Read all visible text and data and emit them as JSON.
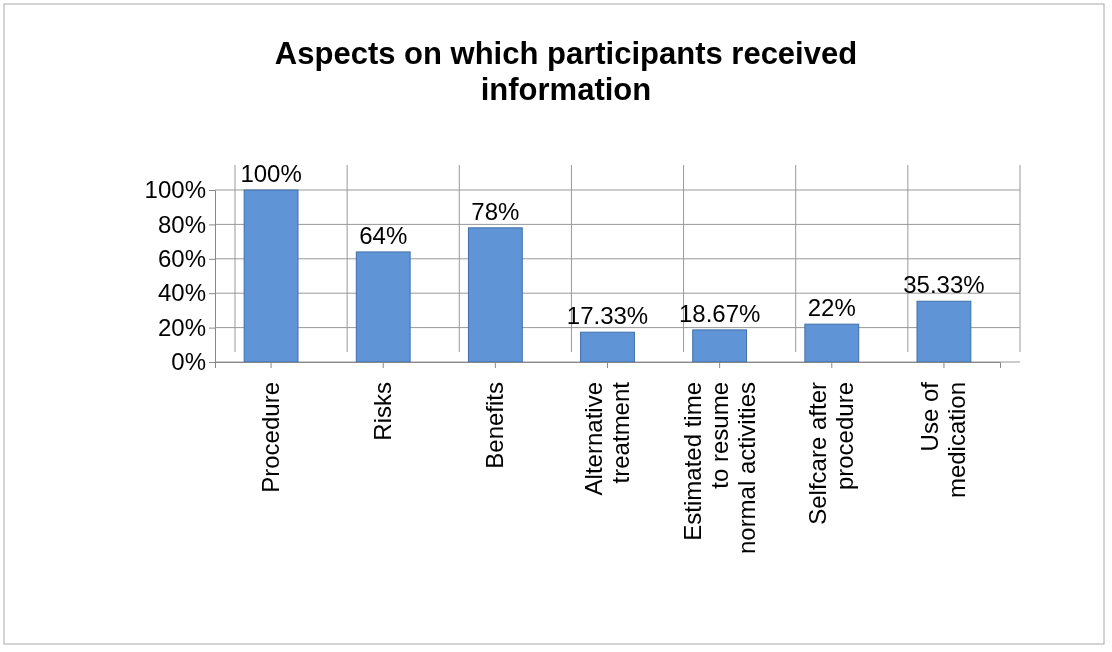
{
  "chart_data": {
    "type": "bar",
    "title": "Aspects on which participants received information",
    "categories": [
      "Procedure",
      "Risks",
      "Benefits",
      "Alternative treatment",
      "Estimated time to resume normal activities",
      "Selfcare after procedure",
      "Use of medication"
    ],
    "values": [
      100,
      64,
      78,
      17.33,
      18.67,
      22,
      35.33
    ],
    "value_labels": [
      "100%",
      "64%",
      "78%",
      "17.33%",
      "18.67%",
      "22%",
      "35.33%"
    ],
    "color": "#5f95d6",
    "ylim": [
      0,
      100
    ],
    "yticks": [
      {
        "value": 0,
        "label": "0%"
      },
      {
        "value": 20,
        "label": "20%"
      },
      {
        "value": 40,
        "label": "40%"
      },
      {
        "value": 60,
        "label": "60%"
      },
      {
        "value": 80,
        "label": "80%"
      },
      {
        "value": 100,
        "label": "100%"
      }
    ],
    "grid": true
  }
}
